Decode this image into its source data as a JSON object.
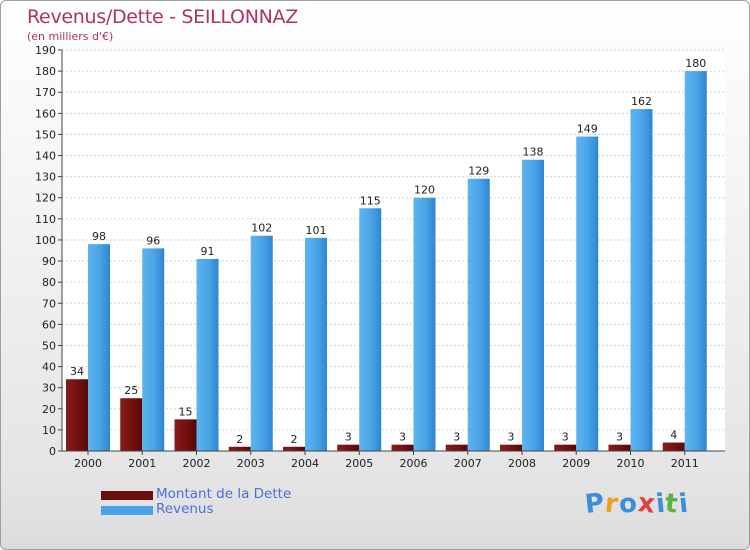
{
  "header": {
    "title": "Revenus/Dette - SEILLONNAZ",
    "subtitle": "(en milliers d'€)"
  },
  "colors": {
    "title": "#b0306a",
    "debt": "#7a1010",
    "revenue": "#4aa3e6",
    "legend_text": "#4a6fd8"
  },
  "legend": {
    "items": [
      {
        "label": "Montant de la Dette",
        "color": "#6a0e0e"
      },
      {
        "label": "Revenus",
        "color": "#4aa3e6"
      }
    ]
  },
  "logo": {
    "text": "Proxiti",
    "letters": [
      {
        "ch": "P",
        "color": "#3a8fd8"
      },
      {
        "ch": "r",
        "color": "#e8a020"
      },
      {
        "ch": "o",
        "color": "#3a8fd8"
      },
      {
        "ch": "x",
        "color": "#e04040"
      },
      {
        "ch": "i",
        "color": "#3a8fd8"
      },
      {
        "ch": "t",
        "color": "#5ab040"
      },
      {
        "ch": "i",
        "color": "#3a8fd8"
      }
    ]
  },
  "chart_data": {
    "type": "bar",
    "title": "Revenus/Dette - SEILLONNAZ",
    "subtitle": "(en milliers d'€)",
    "xlabel": "",
    "ylabel": "",
    "categories": [
      "2000",
      "2001",
      "2002",
      "2003",
      "2004",
      "2005",
      "2006",
      "2007",
      "2008",
      "2009",
      "2010",
      "2011"
    ],
    "series": [
      {
        "name": "Montant de la Dette",
        "values": [
          34,
          25,
          15,
          2,
          2,
          3,
          3,
          3,
          3,
          3,
          3,
          4
        ]
      },
      {
        "name": "Revenus",
        "values": [
          98,
          96,
          91,
          102,
          101,
          115,
          120,
          129,
          138,
          149,
          162,
          180
        ]
      }
    ],
    "ylim": [
      0,
      190
    ],
    "yticks": [
      0,
      10,
      20,
      30,
      40,
      50,
      60,
      70,
      80,
      90,
      100,
      110,
      120,
      130,
      140,
      150,
      160,
      170,
      180,
      190
    ],
    "grid": true,
    "legend_position": "bottom-left"
  }
}
